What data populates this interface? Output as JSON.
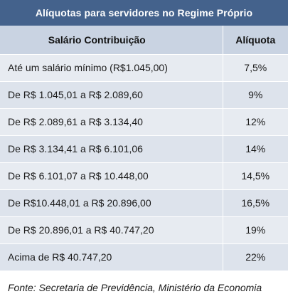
{
  "title": "Alíquotas para servidores no Regime Próprio",
  "table": {
    "headers": {
      "salary": "Salário Contribuição",
      "rate": "Alíquota"
    },
    "rows": [
      {
        "salary": "Até um salário mínimo (R$1.045,00)",
        "rate": "7,5%"
      },
      {
        "salary": "De R$ 1.045,01 a R$ 2.089,60",
        "rate": "9%"
      },
      {
        "salary": "De R$ 2.089,61 a R$ 3.134,40",
        "rate": "12%"
      },
      {
        "salary": "De R$ 3.134,41 a R$ 6.101,06",
        "rate": "14%"
      },
      {
        "salary": "De R$ 6.101,07 a R$ 10.448,00",
        "rate": "14,5%"
      },
      {
        "salary": "De R$10.448,01 a R$ 20.896,00",
        "rate": "16,5%"
      },
      {
        "salary": "De R$ 20.896,01 a R$ 40.747,20",
        "rate": "19%"
      },
      {
        "salary": "Acima de R$ 40.747,20",
        "rate": "22%"
      }
    ]
  },
  "source": "Fonte: Secretaria de Previdência, Ministério da Economia",
  "colors": {
    "title_bg": "#44628c",
    "header_bg": "#c9d3e2",
    "row_bg": "#e7ebf1"
  }
}
